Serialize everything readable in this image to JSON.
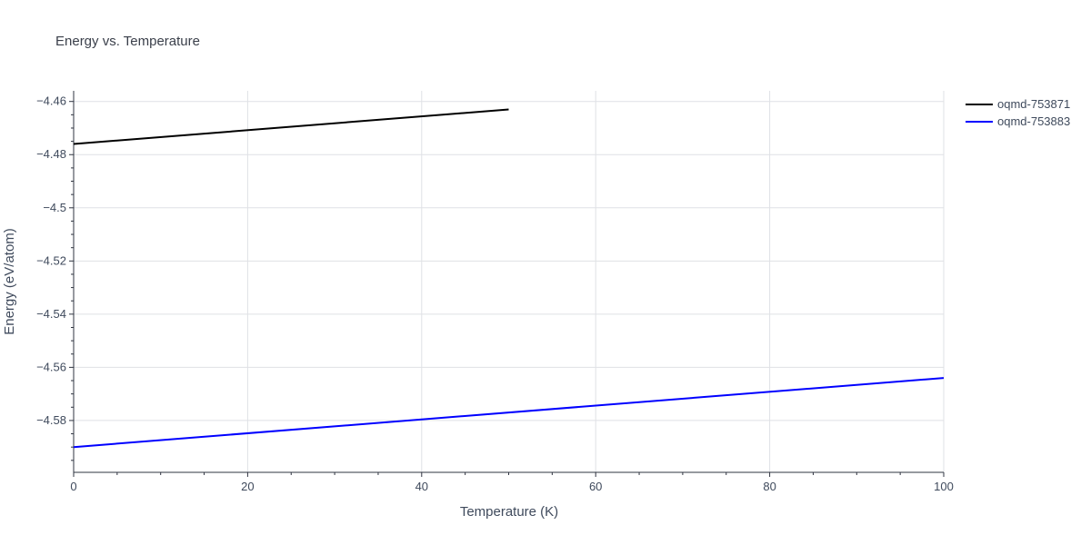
{
  "chart_data": {
    "type": "line",
    "title": "Energy vs. Temperature",
    "xlabel": "Temperature (K)",
    "ylabel": "Energy (eV/atom)",
    "xlim": [
      0,
      100
    ],
    "ylim": [
      -4.5995,
      -4.456
    ],
    "grid": true,
    "legend_position": "top-right",
    "x_ticks": [
      0,
      20,
      40,
      60,
      80,
      100
    ],
    "x_tick_labels": [
      "0",
      "20",
      "40",
      "60",
      "80",
      "100"
    ],
    "x_minor_ticks": [
      5,
      10,
      15,
      25,
      30,
      35,
      45,
      50,
      55,
      65,
      70,
      75,
      85,
      90,
      95
    ],
    "y_ticks": [
      -4.46,
      -4.48,
      -4.5,
      -4.52,
      -4.54,
      -4.56,
      -4.58
    ],
    "y_tick_labels": [
      "−4.46",
      "−4.48",
      "−4.5",
      "−4.52",
      "−4.54",
      "−4.56",
      "−4.58"
    ],
    "y_minor_ticks": [
      -4.465,
      -4.47,
      -4.475,
      -4.485,
      -4.49,
      -4.495,
      -4.505,
      -4.51,
      -4.515,
      -4.525,
      -4.53,
      -4.535,
      -4.545,
      -4.55,
      -4.555,
      -4.565,
      -4.57,
      -4.575,
      -4.585,
      -4.59,
      -4.595
    ],
    "series": [
      {
        "name": "oqmd-753871",
        "color": "#000000",
        "x": [
          0,
          50
        ],
        "y": [
          -4.476,
          -4.463
        ]
      },
      {
        "name": "oqmd-753883",
        "color": "#0000ff",
        "x": [
          0,
          100
        ],
        "y": [
          -4.59,
          -4.564
        ]
      }
    ]
  }
}
